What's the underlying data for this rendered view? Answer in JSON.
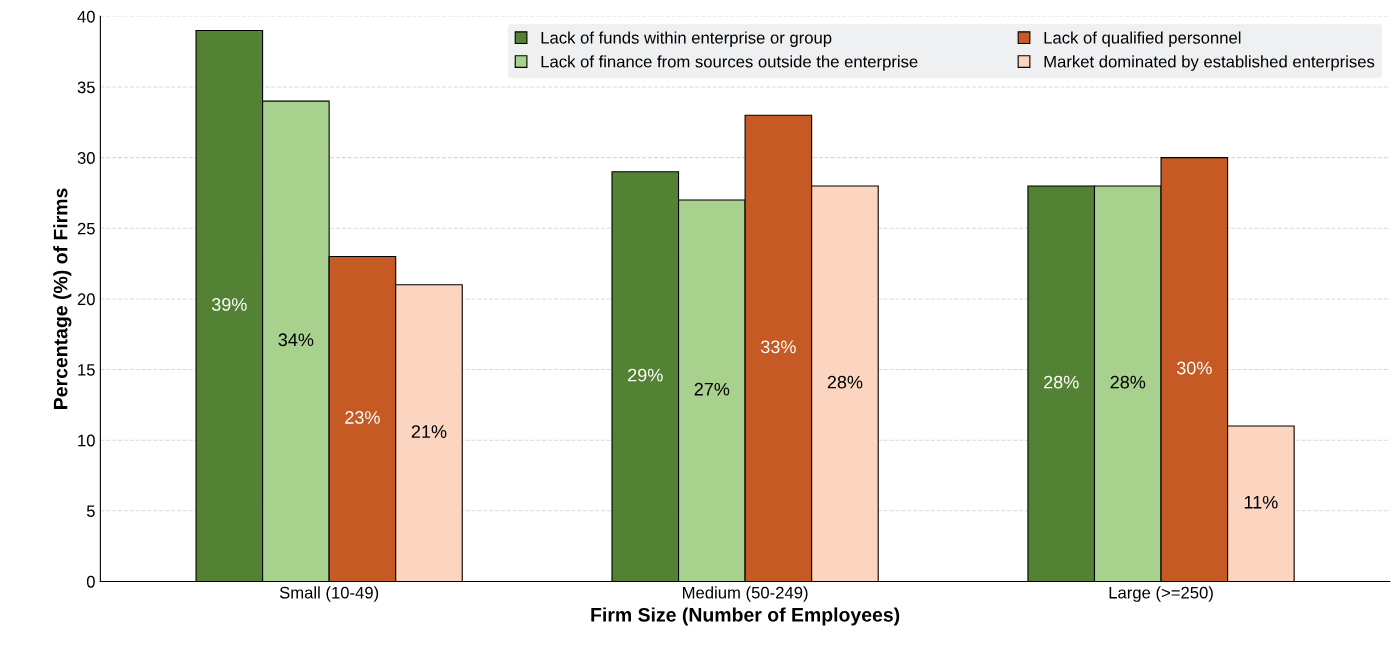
{
  "chart_data": {
    "type": "bar",
    "xlabel": "Firm Size (Number of Employees)",
    "ylabel": "Percentage (%) of Firms",
    "categories": [
      "Small (10-49)",
      "Medium (50-249)",
      "Large (>=250)"
    ],
    "series": [
      {
        "name": "Lack of funds within enterprise or group",
        "color": "#548235",
        "values": [
          39,
          29,
          28
        ],
        "value_labels": [
          "39%",
          "29%",
          "28%"
        ]
      },
      {
        "name": "Lack of finance from sources outside the enterprise",
        "color": "#a9d18e",
        "values": [
          34,
          27,
          28
        ],
        "value_labels": [
          "34%",
          "27%",
          "28%"
        ]
      },
      {
        "name": "Lack of qualified personnel",
        "color": "#c55a24",
        "values": [
          23,
          33,
          30
        ],
        "value_labels": [
          "23%",
          "33%",
          "30%"
        ]
      },
      {
        "name": "Market dominated by established enterprises",
        "color": "#fbd5bf",
        "values": [
          21,
          28,
          11
        ],
        "value_labels": [
          "21%",
          "28%",
          "11%"
        ]
      }
    ],
    "ylim": [
      0,
      40
    ],
    "yticks": [
      0,
      5,
      10,
      15,
      20,
      25,
      30,
      35,
      40
    ],
    "grid": "y",
    "legend": "top right"
  }
}
